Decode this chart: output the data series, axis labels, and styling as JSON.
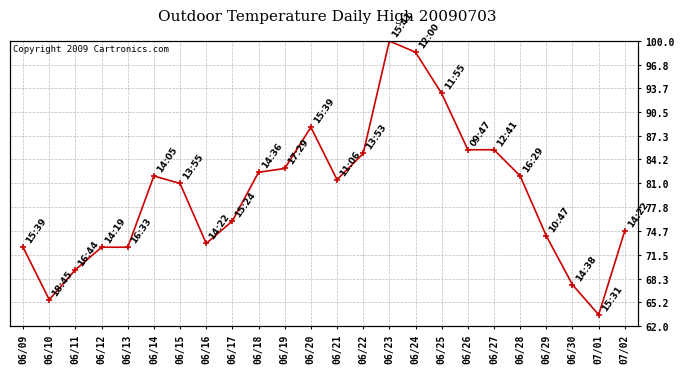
{
  "title": "Outdoor Temperature Daily High 20090703",
  "copyright": "Copyright 2009 Cartronics.com",
  "dates": [
    "06/09",
    "06/10",
    "06/11",
    "06/12",
    "06/13",
    "06/14",
    "06/15",
    "06/16",
    "06/17",
    "06/18",
    "06/19",
    "06/20",
    "06/21",
    "06/22",
    "06/23",
    "06/24",
    "06/25",
    "06/26",
    "06/27",
    "06/28",
    "06/29",
    "06/30",
    "07/01",
    "07/02"
  ],
  "values": [
    72.5,
    65.5,
    69.5,
    72.5,
    72.5,
    82.0,
    81.0,
    73.0,
    76.0,
    82.5,
    83.0,
    88.5,
    81.5,
    85.0,
    100.0,
    98.5,
    93.0,
    85.5,
    85.5,
    82.0,
    74.0,
    67.5,
    63.5,
    74.7
  ],
  "times": [
    "15:39",
    "18:45",
    "16:44",
    "14:19",
    "16:33",
    "14:05",
    "13:55",
    "14:22",
    "15:24",
    "14:36",
    "17:29",
    "15:39",
    "11:06",
    "13:53",
    "15:41",
    "12:00",
    "11:55",
    "09:47",
    "12:41",
    "16:29",
    "10:47",
    "14:38",
    "15:31",
    "14:22"
  ],
  "line_color": "#cc0000",
  "marker_color": "#cc0000",
  "bg_color": "#ffffff",
  "plot_bg_color": "#ffffff",
  "grid_color": "#bbbbbb",
  "title_fontsize": 11,
  "label_fontsize": 6.5,
  "tick_fontsize": 7,
  "copyright_fontsize": 6.5,
  "ylim": [
    62.0,
    100.0
  ],
  "yticks": [
    62.0,
    65.2,
    68.3,
    71.5,
    74.7,
    77.8,
    81.0,
    84.2,
    87.3,
    90.5,
    93.7,
    96.8,
    100.0
  ]
}
